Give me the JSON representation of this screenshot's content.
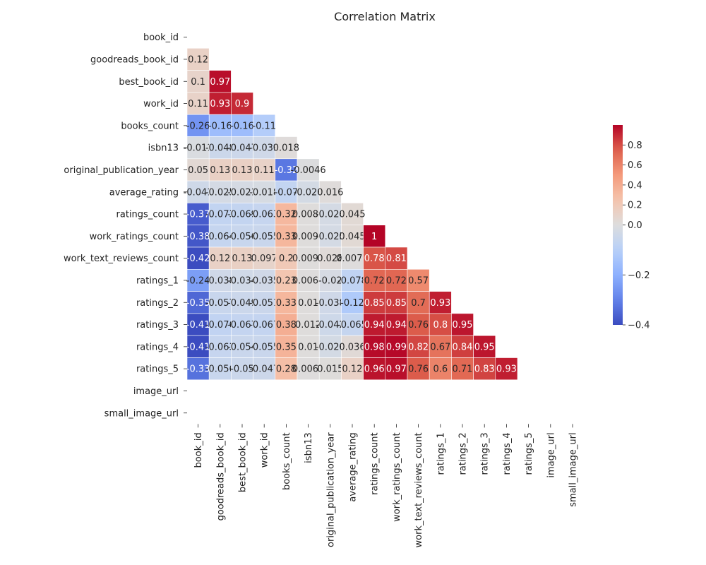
{
  "chart_data": {
    "type": "heatmap",
    "title": "Correlation Matrix",
    "colormap": "coolwarm",
    "vmin": -0.4,
    "vmax": 1,
    "center": 0,
    "mask": "upper-triangle",
    "labels": [
      "book_id",
      "goodreads_book_id",
      "best_book_id",
      "work_id",
      "books_count",
      "isbn13",
      "original_publication_year",
      "average_rating",
      "ratings_count",
      "work_ratings_count",
      "work_text_reviews_count",
      "ratings_1",
      "ratings_2",
      "ratings_3",
      "ratings_4",
      "ratings_5",
      "image_url",
      "small_image_url"
    ],
    "cells": [
      {
        "row": 1,
        "col": 0,
        "value": 0.12,
        "label": "0.12"
      },
      {
        "row": 2,
        "col": 0,
        "value": 0.1,
        "label": "0.1"
      },
      {
        "row": 2,
        "col": 1,
        "value": 0.97,
        "label": "0.97"
      },
      {
        "row": 3,
        "col": 0,
        "value": 0.11,
        "label": "0.11"
      },
      {
        "row": 3,
        "col": 1,
        "value": 0.93,
        "label": "0.93"
      },
      {
        "row": 3,
        "col": 2,
        "value": 0.9,
        "label": "0.9"
      },
      {
        "row": 4,
        "col": 0,
        "value": -0.26,
        "label": "-0.26"
      },
      {
        "row": 4,
        "col": 1,
        "value": -0.16,
        "label": "-0.16"
      },
      {
        "row": 4,
        "col": 2,
        "value": -0.16,
        "label": "-0.16"
      },
      {
        "row": 4,
        "col": 3,
        "value": -0.11,
        "label": "-0.11"
      },
      {
        "row": 5,
        "col": 0,
        "value": -0.011,
        "label": "-0.011"
      },
      {
        "row": 5,
        "col": 1,
        "value": -0.048,
        "label": "-0.048"
      },
      {
        "row": 5,
        "col": 2,
        "value": -0.047,
        "label": "-0.047"
      },
      {
        "row": 5,
        "col": 3,
        "value": -0.039,
        "label": "-0.039"
      },
      {
        "row": 5,
        "col": 4,
        "value": 0.018,
        "label": "0.018"
      },
      {
        "row": 6,
        "col": 0,
        "value": 0.05,
        "label": "0.05"
      },
      {
        "row": 6,
        "col": 1,
        "value": 0.13,
        "label": "0.13"
      },
      {
        "row": 6,
        "col": 2,
        "value": 0.13,
        "label": "0.13"
      },
      {
        "row": 6,
        "col": 3,
        "value": 0.11,
        "label": "0.11"
      },
      {
        "row": 6,
        "col": 4,
        "value": -0.32,
        "label": "-0.32"
      },
      {
        "row": 6,
        "col": 5,
        "value": -0.0046,
        "label": "-0.0046"
      },
      {
        "row": 7,
        "col": 0,
        "value": -0.041,
        "label": "-0.041"
      },
      {
        "row": 7,
        "col": 1,
        "value": -0.025,
        "label": "-0.025"
      },
      {
        "row": 7,
        "col": 2,
        "value": -0.021,
        "label": "-0.021"
      },
      {
        "row": 7,
        "col": 3,
        "value": -0.018,
        "label": "-0.018"
      },
      {
        "row": 7,
        "col": 4,
        "value": -0.07,
        "label": "-0.07"
      },
      {
        "row": 7,
        "col": 5,
        "value": -0.026,
        "label": "-0.026"
      },
      {
        "row": 7,
        "col": 6,
        "value": 0.016,
        "label": "0.016"
      },
      {
        "row": 8,
        "col": 0,
        "value": -0.37,
        "label": "-0.37"
      },
      {
        "row": 8,
        "col": 1,
        "value": -0.073,
        "label": "-0.073"
      },
      {
        "row": 8,
        "col": 2,
        "value": -0.069,
        "label": "-0.069"
      },
      {
        "row": 8,
        "col": 3,
        "value": -0.063,
        "label": "-0.063"
      },
      {
        "row": 8,
        "col": 4,
        "value": 0.32,
        "label": "0.32"
      },
      {
        "row": 8,
        "col": 5,
        "value": 0.0089,
        "label": "0.0089"
      },
      {
        "row": 8,
        "col": 6,
        "value": -0.024,
        "label": "-0.024"
      },
      {
        "row": 8,
        "col": 7,
        "value": 0.045,
        "label": "0.045"
      },
      {
        "row": 9,
        "col": 0,
        "value": -0.38,
        "label": "-0.38"
      },
      {
        "row": 9,
        "col": 1,
        "value": -0.064,
        "label": "-0.064"
      },
      {
        "row": 9,
        "col": 2,
        "value": -0.056,
        "label": "-0.056"
      },
      {
        "row": 9,
        "col": 3,
        "value": -0.055,
        "label": "-0.055"
      },
      {
        "row": 9,
        "col": 4,
        "value": 0.33,
        "label": "0.33"
      },
      {
        "row": 9,
        "col": 5,
        "value": 0.0092,
        "label": "0.0092"
      },
      {
        "row": 9,
        "col": 6,
        "value": -0.025,
        "label": "-0.025"
      },
      {
        "row": 9,
        "col": 7,
        "value": 0.045,
        "label": "0.045"
      },
      {
        "row": 9,
        "col": 8,
        "value": 1,
        "label": "1"
      },
      {
        "row": 10,
        "col": 0,
        "value": -0.42,
        "label": "-0.42"
      },
      {
        "row": 10,
        "col": 1,
        "value": 0.12,
        "label": "0.12"
      },
      {
        "row": 10,
        "col": 2,
        "value": 0.13,
        "label": "0.13"
      },
      {
        "row": 10,
        "col": 3,
        "value": 0.097,
        "label": "0.097"
      },
      {
        "row": 10,
        "col": 4,
        "value": 0.2,
        "label": "0.2"
      },
      {
        "row": 10,
        "col": 5,
        "value": 0.0096,
        "label": "0.0096"
      },
      {
        "row": 10,
        "col": 6,
        "value": 0.028,
        "label": "0.028"
      },
      {
        "row": 10,
        "col": 7,
        "value": 0.0075,
        "label": "0.0075"
      },
      {
        "row": 10,
        "col": 8,
        "value": 0.78,
        "label": "0.78"
      },
      {
        "row": 10,
        "col": 9,
        "value": 0.81,
        "label": "0.81"
      },
      {
        "row": 11,
        "col": 0,
        "value": -0.24,
        "label": "-0.24"
      },
      {
        "row": 11,
        "col": 1,
        "value": -0.038,
        "label": "-0.038"
      },
      {
        "row": 11,
        "col": 2,
        "value": -0.034,
        "label": "-0.034"
      },
      {
        "row": 11,
        "col": 3,
        "value": -0.035,
        "label": "-0.035"
      },
      {
        "row": 11,
        "col": 4,
        "value": 0.23,
        "label": "0.23"
      },
      {
        "row": 11,
        "col": 5,
        "value": 0.0061,
        "label": "0.0061"
      },
      {
        "row": 11,
        "col": 6,
        "value": -0.02,
        "label": "-0.02"
      },
      {
        "row": 11,
        "col": 7,
        "value": -0.078,
        "label": "-0.078"
      },
      {
        "row": 11,
        "col": 8,
        "value": 0.72,
        "label": "0.72"
      },
      {
        "row": 11,
        "col": 9,
        "value": 0.72,
        "label": "0.72"
      },
      {
        "row": 11,
        "col": 10,
        "value": 0.57,
        "label": "0.57"
      },
      {
        "row": 12,
        "col": 0,
        "value": -0.35,
        "label": "-0.35"
      },
      {
        "row": 12,
        "col": 1,
        "value": -0.057,
        "label": "-0.057"
      },
      {
        "row": 12,
        "col": 2,
        "value": -0.049,
        "label": "-0.049"
      },
      {
        "row": 12,
        "col": 3,
        "value": -0.051,
        "label": "-0.051"
      },
      {
        "row": 12,
        "col": 4,
        "value": 0.33,
        "label": "0.33"
      },
      {
        "row": 12,
        "col": 5,
        "value": 0.01,
        "label": "0.01"
      },
      {
        "row": 12,
        "col": 6,
        "value": -0.038,
        "label": "-0.038"
      },
      {
        "row": 12,
        "col": 7,
        "value": -0.12,
        "label": "-0.12"
      },
      {
        "row": 12,
        "col": 8,
        "value": 0.85,
        "label": "0.85"
      },
      {
        "row": 12,
        "col": 9,
        "value": 0.85,
        "label": "0.85"
      },
      {
        "row": 12,
        "col": 10,
        "value": 0.7,
        "label": "0.7"
      },
      {
        "row": 12,
        "col": 11,
        "value": 0.93,
        "label": "0.93"
      },
      {
        "row": 13,
        "col": 0,
        "value": -0.41,
        "label": "-0.41"
      },
      {
        "row": 13,
        "col": 1,
        "value": -0.076,
        "label": "-0.076"
      },
      {
        "row": 13,
        "col": 2,
        "value": -0.067,
        "label": "-0.067"
      },
      {
        "row": 13,
        "col": 3,
        "value": -0.067,
        "label": "-0.067"
      },
      {
        "row": 13,
        "col": 4,
        "value": 0.38,
        "label": "0.38"
      },
      {
        "row": 13,
        "col": 5,
        "value": 0.012,
        "label": "0.012"
      },
      {
        "row": 13,
        "col": 6,
        "value": -0.042,
        "label": "-0.042"
      },
      {
        "row": 13,
        "col": 7,
        "value": -0.065,
        "label": "-0.065"
      },
      {
        "row": 13,
        "col": 8,
        "value": 0.94,
        "label": "0.94"
      },
      {
        "row": 13,
        "col": 9,
        "value": 0.94,
        "label": "0.94"
      },
      {
        "row": 13,
        "col": 10,
        "value": 0.76,
        "label": "0.76"
      },
      {
        "row": 13,
        "col": 11,
        "value": 0.8,
        "label": "0.8"
      },
      {
        "row": 13,
        "col": 12,
        "value": 0.95,
        "label": "0.95"
      },
      {
        "row": 14,
        "col": 0,
        "value": -0.41,
        "label": "-0.41"
      },
      {
        "row": 14,
        "col": 1,
        "value": -0.063,
        "label": "-0.063"
      },
      {
        "row": 14,
        "col": 2,
        "value": -0.054,
        "label": "-0.054"
      },
      {
        "row": 14,
        "col": 3,
        "value": -0.055,
        "label": "-0.055"
      },
      {
        "row": 14,
        "col": 4,
        "value": 0.35,
        "label": "0.35"
      },
      {
        "row": 14,
        "col": 5,
        "value": 0.01,
        "label": "0.01"
      },
      {
        "row": 14,
        "col": 6,
        "value": -0.026,
        "label": "-0.026"
      },
      {
        "row": 14,
        "col": 7,
        "value": 0.036,
        "label": "0.036"
      },
      {
        "row": 14,
        "col": 8,
        "value": 0.98,
        "label": "0.98"
      },
      {
        "row": 14,
        "col": 9,
        "value": 0.99,
        "label": "0.99"
      },
      {
        "row": 14,
        "col": 10,
        "value": 0.82,
        "label": "0.82"
      },
      {
        "row": 14,
        "col": 11,
        "value": 0.67,
        "label": "0.67"
      },
      {
        "row": 14,
        "col": 12,
        "value": 0.84,
        "label": "0.84"
      },
      {
        "row": 14,
        "col": 13,
        "value": 0.95,
        "label": "0.95"
      },
      {
        "row": 15,
        "col": 0,
        "value": -0.33,
        "label": "-0.33"
      },
      {
        "row": 15,
        "col": 1,
        "value": -0.056,
        "label": "-0.056"
      },
      {
        "row": 15,
        "col": 2,
        "value": -0.05,
        "label": "-0.05"
      },
      {
        "row": 15,
        "col": 3,
        "value": -0.047,
        "label": "-0.047"
      },
      {
        "row": 15,
        "col": 4,
        "value": 0.28,
        "label": "0.28"
      },
      {
        "row": 15,
        "col": 5,
        "value": 0.0066,
        "label": "0.0066"
      },
      {
        "row": 15,
        "col": 6,
        "value": 0.015,
        "label": "0.015"
      },
      {
        "row": 15,
        "col": 7,
        "value": 0.12,
        "label": "0.12"
      },
      {
        "row": 15,
        "col": 8,
        "value": 0.96,
        "label": "0.96"
      },
      {
        "row": 15,
        "col": 9,
        "value": 0.97,
        "label": "0.97"
      },
      {
        "row": 15,
        "col": 10,
        "value": 0.76,
        "label": "0.76"
      },
      {
        "row": 15,
        "col": 11,
        "value": 0.6,
        "label": "0.6"
      },
      {
        "row": 15,
        "col": 12,
        "value": 0.71,
        "label": "0.71"
      },
      {
        "row": 15,
        "col": 13,
        "value": 0.83,
        "label": "0.83"
      },
      {
        "row": 15,
        "col": 14,
        "value": 0.93,
        "label": "0.93"
      }
    ],
    "colorbar": {
      "ticks": [
        -0.4,
        -0.2,
        0.0,
        0.2,
        0.4,
        0.6,
        0.8
      ],
      "tick_labels": [
        "−0.4",
        "−0.2",
        "0.0",
        "0.2",
        "0.4",
        "0.6",
        "0.8"
      ]
    }
  }
}
